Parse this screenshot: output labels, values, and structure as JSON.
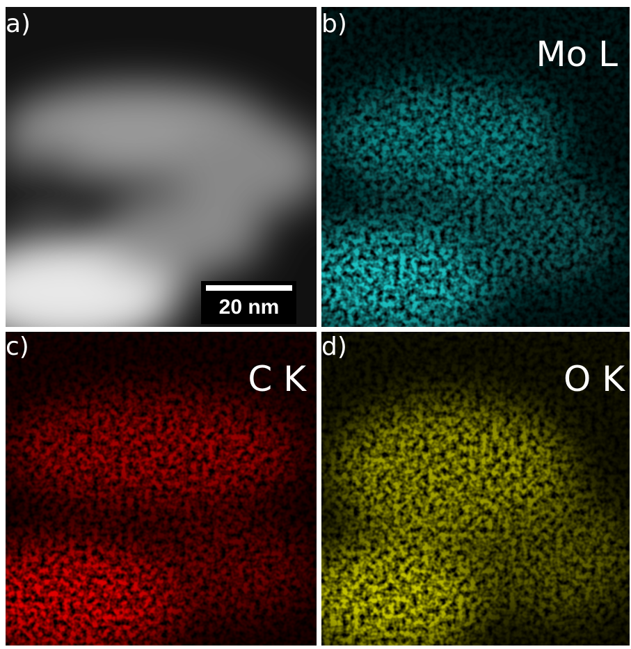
{
  "panels": [
    {
      "label": "a)",
      "scale_bar": "20 nm"
    },
    {
      "label": "b)",
      "element": "Mo L"
    },
    {
      "label": "c)",
      "element": "C K"
    },
    {
      "label": "d)",
      "element": "O K"
    }
  ]
}
